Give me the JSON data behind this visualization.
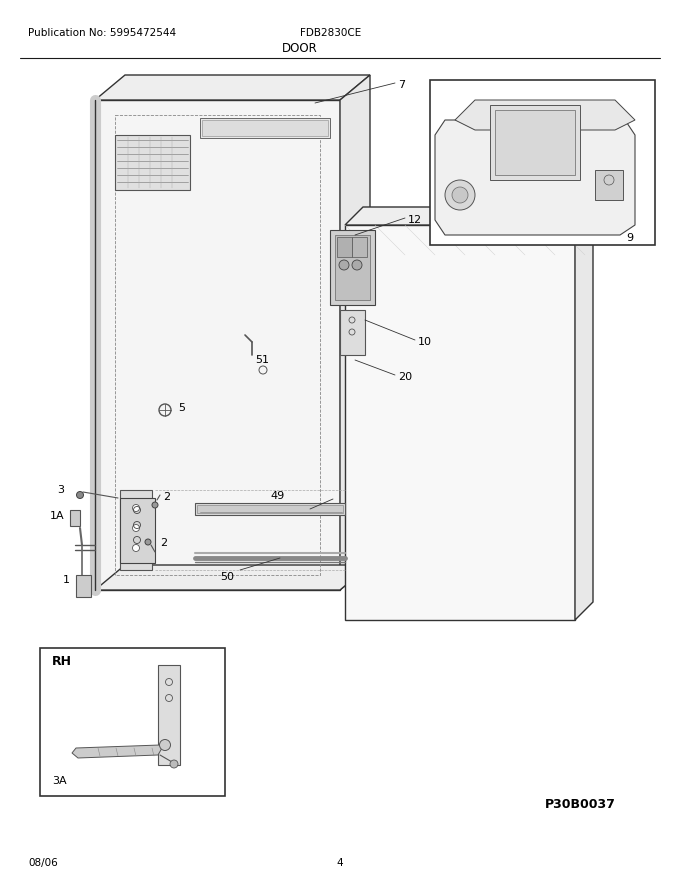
{
  "title_left": "Publication No: 5995472544",
  "title_center": "FDB2830CE",
  "title_section": "DOOR",
  "footer_left": "08/06",
  "footer_center": "4",
  "ref_code": "P30B0037",
  "bg_color": "#ffffff"
}
